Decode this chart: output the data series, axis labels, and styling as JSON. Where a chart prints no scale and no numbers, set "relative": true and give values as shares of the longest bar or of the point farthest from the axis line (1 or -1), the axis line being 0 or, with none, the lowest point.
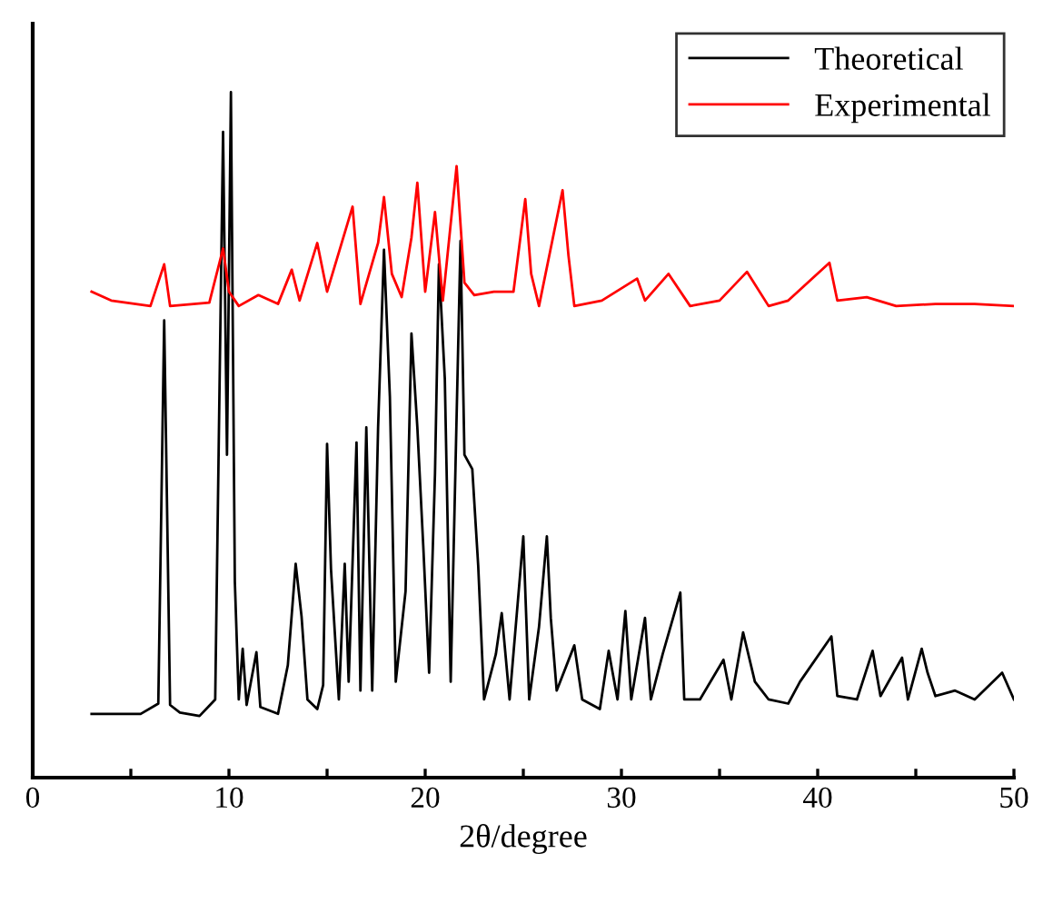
{
  "chart_data": {
    "type": "line",
    "relative": true,
    "xlabel": "2θ/degree",
    "xlim": [
      0,
      50
    ],
    "xticks": [
      0,
      {
        "value": 5,
        "label": null
      },
      10,
      {
        "value": 15,
        "label": null
      },
      20,
      {
        "value": 25,
        "label": null
      },
      30,
      {
        "value": 35,
        "label": null
      },
      40,
      {
        "value": 45,
        "label": null
      },
      50
    ],
    "tick_labels": "x",
    "grid": false,
    "legend": "top right",
    "marker": "none",
    "line_style": "solid",
    "series": [
      {
        "name": "Theoretical",
        "color": "#000000",
        "x": [
          3.0,
          5.5,
          6.4,
          6.7,
          7.0,
          7.5,
          8.5,
          9.3,
          9.7,
          9.9,
          10.1,
          10.3,
          10.5,
          10.7,
          10.9,
          11.4,
          11.6,
          12.5,
          13.0,
          13.4,
          13.7,
          14.0,
          14.5,
          14.8,
          15.0,
          15.2,
          15.6,
          15.9,
          16.1,
          16.5,
          16.7,
          17.0,
          17.3,
          17.6,
          17.9,
          18.2,
          18.5,
          19.0,
          19.3,
          19.6,
          19.9,
          20.2,
          20.5,
          20.7,
          21.0,
          21.3,
          21.8,
          22.0,
          22.4,
          22.7,
          23.0,
          23.6,
          23.9,
          24.3,
          25.0,
          25.3,
          25.8,
          26.2,
          26.4,
          26.7,
          27.6,
          28.0,
          28.9,
          29.35,
          29.8,
          30.2,
          30.5,
          31.2,
          31.5,
          32.1,
          33.0,
          33.2,
          34.0,
          35.2,
          35.6,
          36.2,
          36.8,
          37.5,
          38.5,
          39.1,
          40.7,
          41.0,
          42.0,
          42.8,
          43.2,
          44.3,
          44.6,
          45.3,
          45.6,
          46.0,
          47.0,
          48.0,
          49.4,
          50.0
        ],
        "values": [
          0.093,
          0.093,
          0.108,
          0.667,
          0.106,
          0.095,
          0.09,
          0.114,
          0.942,
          0.471,
          1.0,
          0.286,
          0.114,
          0.188,
          0.106,
          0.183,
          0.103,
          0.093,
          0.164,
          0.312,
          0.235,
          0.114,
          0.1,
          0.135,
          0.487,
          0.304,
          0.114,
          0.312,
          0.14,
          0.489,
          0.127,
          0.511,
          0.127,
          0.511,
          0.77,
          0.556,
          0.14,
          0.272,
          0.648,
          0.511,
          0.339,
          0.153,
          0.444,
          0.749,
          0.582,
          0.14,
          0.783,
          0.471,
          0.45,
          0.31,
          0.114,
          0.18,
          0.24,
          0.114,
          0.352,
          0.114,
          0.22,
          0.352,
          0.233,
          0.127,
          0.193,
          0.114,
          0.1,
          0.185,
          0.114,
          0.243,
          0.114,
          0.233,
          0.114,
          0.18,
          0.27,
          0.114,
          0.114,
          0.172,
          0.114,
          0.212,
          0.14,
          0.114,
          0.108,
          0.14,
          0.206,
          0.119,
          0.114,
          0.185,
          0.119,
          0.175,
          0.114,
          0.188,
          0.153,
          0.119,
          0.127,
          0.114,
          0.153,
          0.114
        ]
      },
      {
        "name": "Experimental",
        "color": "#ff0000",
        "x": [
          3.0,
          4.0,
          6.0,
          6.7,
          7.0,
          9.0,
          9.7,
          10.0,
          10.5,
          11.5,
          12.5,
          13.2,
          13.6,
          14.5,
          15.0,
          16.3,
          16.7,
          17.6,
          17.9,
          18.3,
          18.8,
          19.3,
          19.6,
          20.0,
          20.5,
          20.9,
          21.6,
          22.0,
          22.5,
          23.5,
          24.5,
          25.1,
          25.4,
          25.8,
          27.0,
          27.3,
          27.6,
          29.0,
          30.8,
          31.2,
          32.4,
          33.5,
          35.0,
          36.4,
          37.5,
          38.5,
          40.6,
          41.0,
          42.5,
          44.0,
          46.0,
          48.0,
          50.0
        ],
        "values": [
          0.709,
          0.696,
          0.688,
          0.749,
          0.688,
          0.693,
          0.772,
          0.709,
          0.688,
          0.704,
          0.691,
          0.741,
          0.696,
          0.78,
          0.709,
          0.833,
          0.691,
          0.78,
          0.847,
          0.735,
          0.701,
          0.788,
          0.868,
          0.709,
          0.825,
          0.696,
          0.892,
          0.722,
          0.704,
          0.709,
          0.709,
          0.844,
          0.735,
          0.688,
          0.857,
          0.762,
          0.688,
          0.696,
          0.728,
          0.696,
          0.735,
          0.688,
          0.696,
          0.738,
          0.688,
          0.696,
          0.751,
          0.696,
          0.701,
          0.688,
          0.691,
          0.691,
          0.688
        ]
      }
    ]
  }
}
